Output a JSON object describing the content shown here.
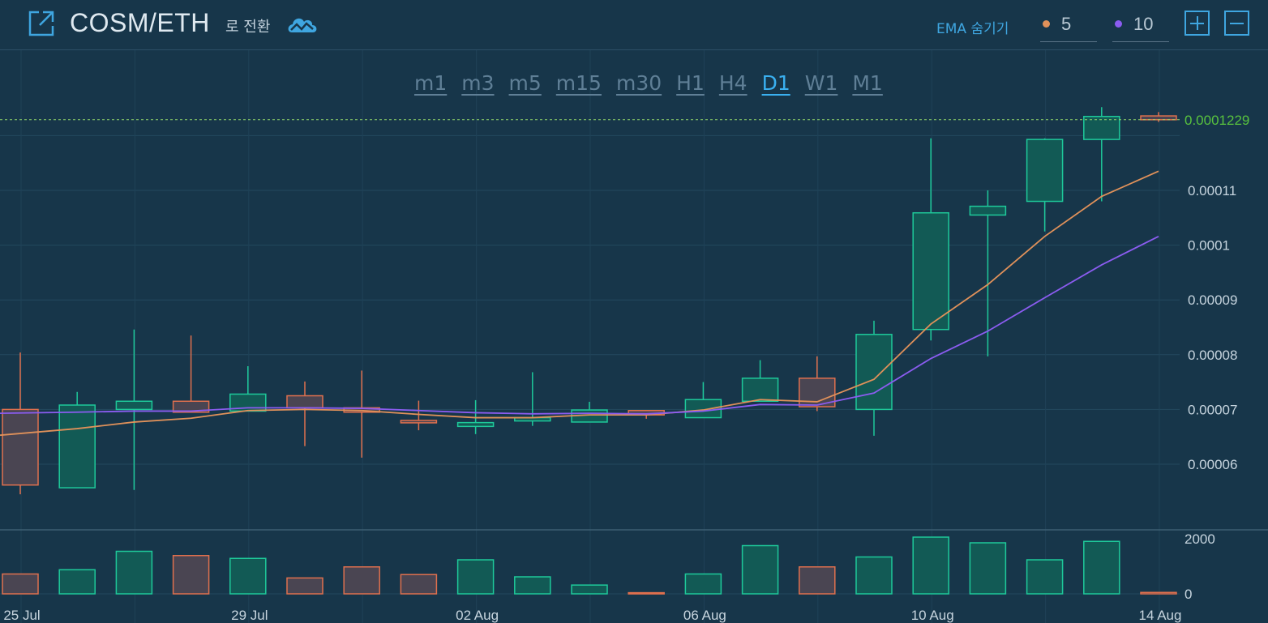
{
  "header": {
    "pair": "COSM/ETH",
    "switch_text": "로 전환",
    "ema_toggle": "EMA 숨기기",
    "ema_fast": "5",
    "ema_slow": "10",
    "icons": [
      "external-link-icon",
      "cloud-wave-icon",
      "zoom-in-icon",
      "zoom-out-icon"
    ]
  },
  "timeframes": [
    "m1",
    "m3",
    "m5",
    "m15",
    "m30",
    "H1",
    "H4",
    "D1",
    "W1",
    "M1"
  ],
  "active_timeframe": "D1",
  "colors": {
    "bg": "#17364a",
    "up": "#1ec99a",
    "down": "#e0704e",
    "ema_fast": "#e0915a",
    "ema_slow": "#8b5cf0",
    "accent": "#3fa6e0",
    "last_price": "#58c23e"
  },
  "chart_data": {
    "type": "candlestick",
    "x_tick_labels": [
      "25 Jul",
      "29 Jul",
      "02 Aug",
      "06 Aug",
      "10 Aug",
      "14 Aug"
    ],
    "y_tick_labels": [
      "0.00011",
      "0.0001",
      "0.00009",
      "0.00008",
      "0.00007",
      "0.00006"
    ],
    "y_ticks": [
      0.00011,
      0.0001,
      9e-05,
      8e-05,
      7e-05,
      6e-05
    ],
    "volume_tick_labels": [
      "2000",
      "0"
    ],
    "volume_ticks": [
      2000,
      0
    ],
    "last_price_label": "0.0001229",
    "last_price": 0.0001229,
    "candles": [
      {
        "date": "25 Jul",
        "o": 7e-05,
        "h": 8.04e-05,
        "l": 5.45e-05,
        "c": 5.62e-05,
        "v": 700
      },
      {
        "date": "26 Jul",
        "o": 5.57e-05,
        "h": 7.32e-05,
        "l": 5.57e-05,
        "c": 7.08e-05,
        "v": 850
      },
      {
        "date": "27 Jul",
        "o": 7e-05,
        "h": 8.46e-05,
        "l": 5.53e-05,
        "c": 7.15e-05,
        "v": 1500
      },
      {
        "date": "28 Jul",
        "o": 7.15e-05,
        "h": 8.35e-05,
        "l": 6.95e-05,
        "c": 6.95e-05,
        "v": 1350
      },
      {
        "date": "29 Jul",
        "o": 6.97e-05,
        "h": 7.79e-05,
        "l": 6.97e-05,
        "c": 7.28e-05,
        "v": 1250
      },
      {
        "date": "30 Jul",
        "o": 7.25e-05,
        "h": 7.51e-05,
        "l": 6.33e-05,
        "c": 7.03e-05,
        "v": 560
      },
      {
        "date": "31 Jul",
        "o": 7.03e-05,
        "h": 7.71e-05,
        "l": 6.12e-05,
        "c": 6.95e-05,
        "v": 950
      },
      {
        "date": "01 Aug",
        "o": 6.8e-05,
        "h": 7.16e-05,
        "l": 6.62e-05,
        "c": 6.78e-05,
        "v": 680
      },
      {
        "date": "02 Aug",
        "o": 6.69e-05,
        "h": 7.17e-05,
        "l": 6.55e-05,
        "c": 6.76e-05,
        "v": 1200
      },
      {
        "date": "03 Aug",
        "o": 6.79e-05,
        "h": 7.68e-05,
        "l": 6.7e-05,
        "c": 6.85e-05,
        "v": 600
      },
      {
        "date": "04 Aug",
        "o": 6.77e-05,
        "h": 7.14e-05,
        "l": 6.77e-05,
        "c": 6.99e-05,
        "v": 310
      },
      {
        "date": "05 Aug",
        "o": 6.98e-05,
        "h": 6.98e-05,
        "l": 6.83e-05,
        "c": 6.9e-05,
        "v": 40
      },
      {
        "date": "06 Aug",
        "o": 6.85e-05,
        "h": 7.5e-05,
        "l": 6.85e-05,
        "c": 7.18e-05,
        "v": 700
      },
      {
        "date": "07 Aug",
        "o": 7.15e-05,
        "h": 7.9e-05,
        "l": 7.15e-05,
        "c": 7.57e-05,
        "v": 1700
      },
      {
        "date": "08 Aug",
        "o": 7.57e-05,
        "h": 7.97e-05,
        "l": 6.97e-05,
        "c": 7.05e-05,
        "v": 950
      },
      {
        "date": "09 Aug",
        "o": 7e-05,
        "h": 8.62e-05,
        "l": 6.52e-05,
        "c": 8.37e-05,
        "v": 1300
      },
      {
        "date": "10 Aug",
        "o": 8.46e-05,
        "h": 0.0001195,
        "l": 8.26e-05,
        "c": 0.0001059,
        "v": 2000
      },
      {
        "date": "11 Aug",
        "o": 0.0001055,
        "h": 0.00011,
        "l": 7.97e-05,
        "c": 0.0001071,
        "v": 1800
      },
      {
        "date": "12 Aug",
        "o": 0.000108,
        "h": 0.0001195,
        "l": 0.0001025,
        "c": 0.0001193,
        "v": 1200
      },
      {
        "date": "13 Aug",
        "o": 0.0001193,
        "h": 0.0001252,
        "l": 0.000108,
        "c": 0.0001235,
        "v": 1850
      },
      {
        "date": "14 Aug",
        "o": 0.0001236,
        "h": 0.0001243,
        "l": 0.0001225,
        "c": 0.0001229,
        "v": 50
      }
    ],
    "ema5": [
      6.53e-05,
      6.65e-05,
      6.77e-05,
      6.84e-05,
      6.98e-05,
      7e-05,
      6.98e-05,
      6.91e-05,
      6.85e-05,
      6.85e-05,
      6.9e-05,
      6.9e-05,
      6.99e-05,
      7.18e-05,
      7.14e-05,
      7.55e-05,
      8.56e-05,
      9.28e-05,
      0.0001016,
      0.0001089,
      0.0001135
    ],
    "ema10": [
      6.93e-05,
      6.95e-05,
      6.97e-05,
      6.97e-05,
      7.03e-05,
      7.03e-05,
      7.02e-05,
      6.98e-05,
      6.94e-05,
      6.92e-05,
      6.93e-05,
      6.92e-05,
      6.97e-05,
      7.09e-05,
      7.08e-05,
      7.3e-05,
      7.93e-05,
      8.43e-05,
      9.04e-05,
      9.64e-05,
      0.0001016
    ]
  }
}
